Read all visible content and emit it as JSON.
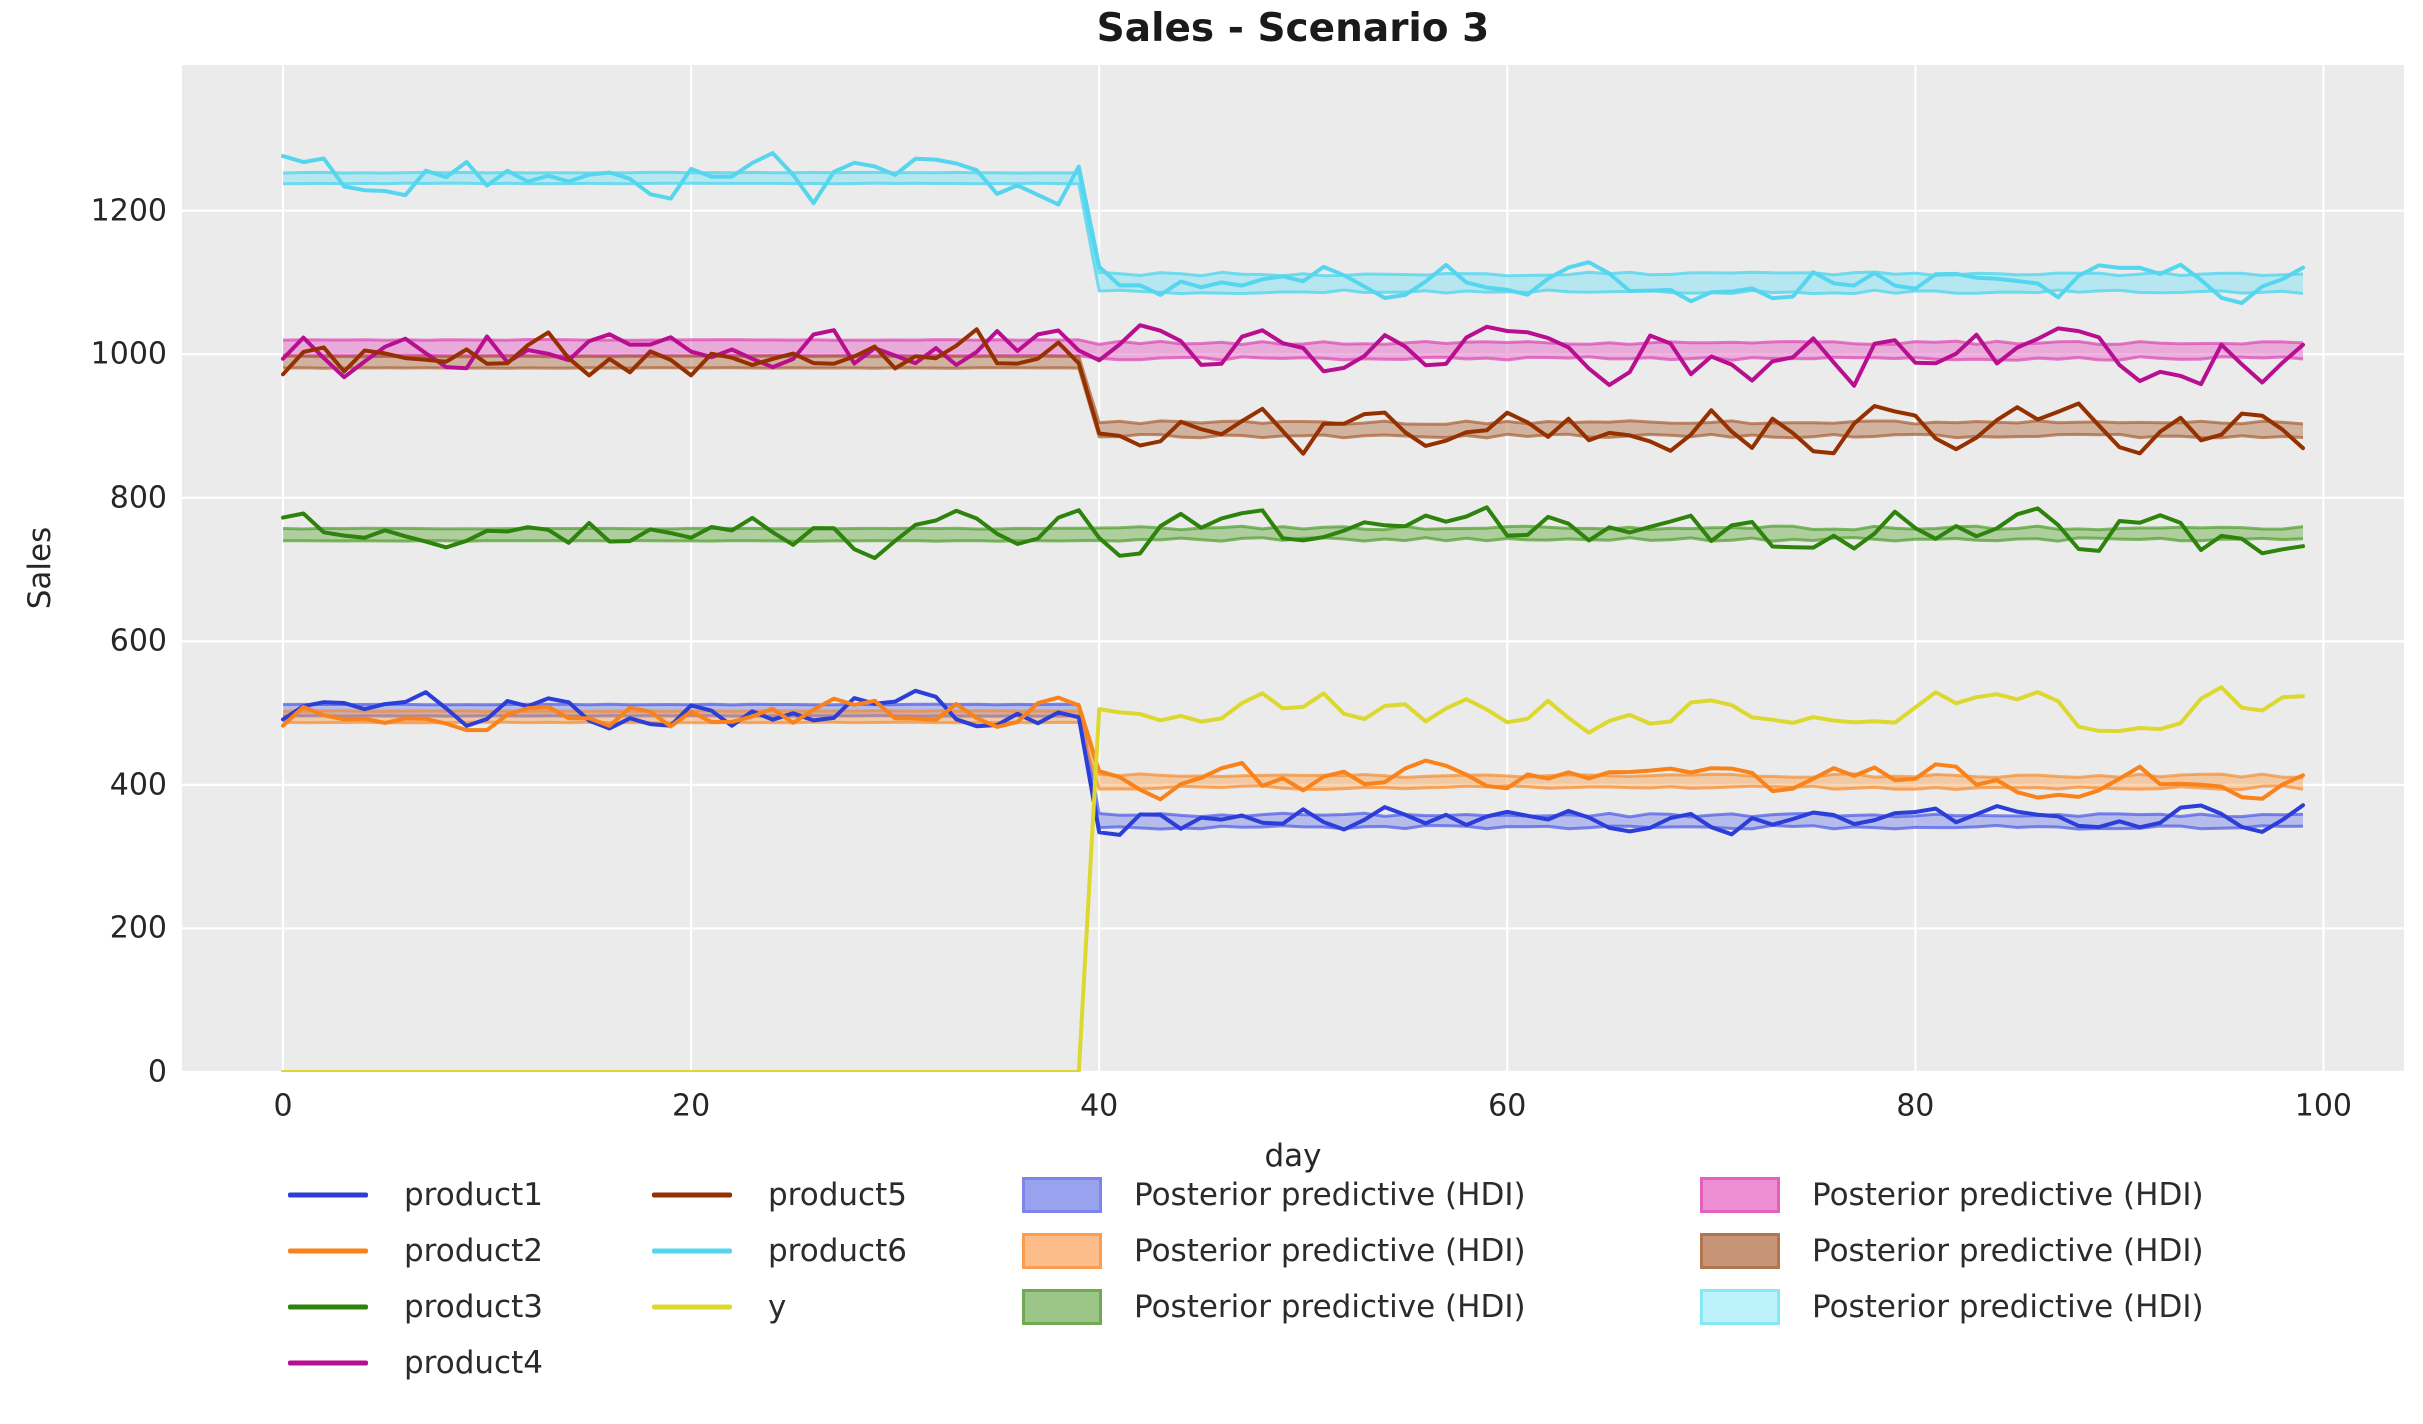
{
  "chart_data": {
    "type": "line",
    "title": "Sales - Scenario 3",
    "xlabel": "day",
    "ylabel": "Sales",
    "axes": {
      "xlim": [
        -4.95,
        103.95
      ],
      "ylim": [
        0,
        1403
      ],
      "x_ticks": [
        0,
        20,
        40,
        60,
        80,
        100
      ],
      "y_ticks": [
        0,
        200,
        400,
        600,
        800,
        1000,
        1200
      ],
      "grid": true,
      "background": "#ebebeb",
      "grid_color": "#ffffff"
    },
    "n_days": 100,
    "change_point_day": 40,
    "series": [
      {
        "name": "product1",
        "color": "#2c3ed8",
        "seed": 101,
        "pre": {
          "mean": 507,
          "amp": 27
        },
        "post": {
          "mean": 352,
          "amp": 21
        }
      },
      {
        "name": "product2",
        "color": "#f9821a",
        "seed": 202,
        "pre": {
          "mean": 498,
          "amp": 26
        },
        "post": {
          "mean": 404,
          "amp": 26
        }
      },
      {
        "name": "product3",
        "color": "#2d830c",
        "seed": 303,
        "pre": {
          "mean": 751,
          "amp": 31
        },
        "post": {
          "mean": 751,
          "amp": 31
        }
      },
      {
        "name": "product4",
        "color": "#b80e90",
        "seed": 404,
        "pre": {
          "mean": 1003,
          "amp": 40
        },
        "post": {
          "mean": 1001,
          "amp": 40
        }
      },
      {
        "name": "product5",
        "color": "#953100",
        "seed": 505,
        "pre": {
          "mean": 997,
          "amp": 34
        },
        "post": {
          "mean": 894,
          "amp": 33
        }
      },
      {
        "name": "product6",
        "color": "#55d6ee",
        "seed": 606,
        "pre": {
          "mean": 1246,
          "amp": 38
        },
        "post": {
          "mean": 1102,
          "amp": 29
        }
      },
      {
        "name": "y",
        "color": "#ddd830",
        "seed": 707,
        "pre": {
          "mean": 0,
          "amp": 0
        },
        "post": {
          "mean": 502,
          "amp": 28
        }
      }
    ],
    "hdi_bands": [
      {
        "name": "product1",
        "seed": 11,
        "pre": [
          496,
          512
        ],
        "post": [
          341,
          358
        ],
        "fill": "rgba(95,110,235,0.38)",
        "edge": "rgba(75,90,230,0.70)",
        "legend_fill": "#99a2ef",
        "legend_edge": "#7b86e8"
      },
      {
        "name": "product2",
        "seed": 22,
        "pre": [
          487,
          503
        ],
        "post": [
          396,
          413
        ],
        "fill": "rgba(250,155,70,0.42)",
        "edge": "rgba(248,135,35,0.65)",
        "legend_fill": "#fcbd8b",
        "legend_edge": "#fa9d51"
      },
      {
        "name": "product3",
        "seed": 33,
        "pre": [
          740,
          757
        ],
        "post": [
          742,
          758
        ],
        "fill": "rgba(100,170,65,0.45)",
        "edge": "rgba(80,158,45,0.70)",
        "legend_fill": "#9cc687",
        "legend_edge": "#71a854"
      },
      {
        "name": "product4",
        "seed": 44,
        "pre": [
          998,
          1020
        ],
        "post": [
          994,
          1016
        ],
        "fill": "rgba(228,100,196,0.48)",
        "edge": "rgba(219,70,180,0.70)",
        "legend_fill": "#ee8ed3",
        "legend_edge": "#e361bd"
      },
      {
        "name": "product5",
        "seed": 55,
        "pre": [
          981,
          997
        ],
        "post": [
          886,
          905
        ],
        "fill": "rgba(180,115,75,0.48)",
        "edge": "rgba(168,95,52,0.70)",
        "legend_fill": "#c79478",
        "legend_edge": "#b0764f"
      },
      {
        "name": "product6",
        "seed": 66,
        "pre": [
          1238,
          1253
        ],
        "post": [
          1087,
          1112
        ],
        "fill": "rgba(130,228,246,0.50)",
        "edge": "rgba(85,214,238,0.80)",
        "legend_fill": "#bdf2fa",
        "legend_edge": "#86e7f5"
      }
    ]
  },
  "legend": {
    "hdi_label": "Posterior predictive (HDI)",
    "columns": [
      {
        "type": "line",
        "items": [
          {
            "label": "product1",
            "series": "product1"
          },
          {
            "label": "product2",
            "series": "product2"
          },
          {
            "label": "product3",
            "series": "product3"
          },
          {
            "label": "product4",
            "series": "product4"
          }
        ]
      },
      {
        "type": "line",
        "items": [
          {
            "label": "product5",
            "series": "product5"
          },
          {
            "label": "product6",
            "series": "product6"
          },
          {
            "label": "y",
            "series": "y"
          }
        ]
      },
      {
        "type": "patch",
        "items": [
          {
            "label": "Posterior predictive (HDI)",
            "band": "product1"
          },
          {
            "label": "Posterior predictive (HDI)",
            "band": "product2"
          },
          {
            "label": "Posterior predictive (HDI)",
            "band": "product3"
          }
        ]
      },
      {
        "type": "patch",
        "items": [
          {
            "label": "Posterior predictive (HDI)",
            "band": "product4"
          },
          {
            "label": "Posterior predictive (HDI)",
            "band": "product5"
          },
          {
            "label": "Posterior predictive (HDI)",
            "band": "product6"
          }
        ]
      }
    ]
  }
}
